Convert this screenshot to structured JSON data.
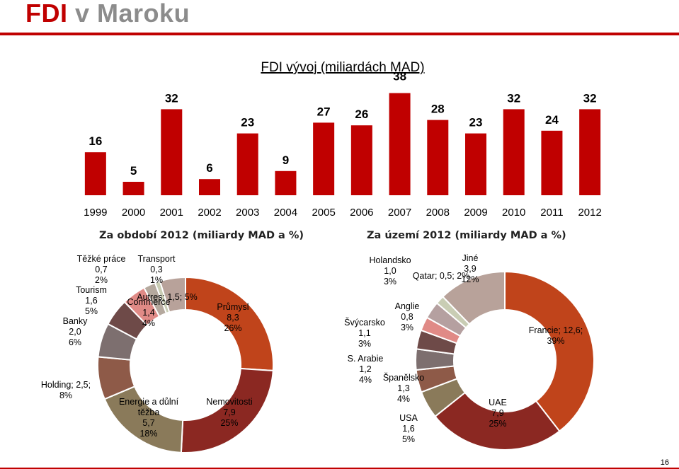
{
  "slide": {
    "title_strong": "FDI",
    "title_rest": "v Maroku",
    "page_number": "16",
    "colors": {
      "accent": "#c00000",
      "title_gray": "#8c8c8c"
    }
  },
  "chart_data": [
    {
      "type": "bar",
      "title": "FDI vývoj (miliardách MAD)",
      "categories": [
        "1999",
        "2000",
        "2001",
        "2002",
        "2003",
        "2004",
        "2005",
        "2006",
        "2007",
        "2008",
        "2009",
        "2010",
        "2011",
        "2012"
      ],
      "values": [
        16,
        5,
        32,
        6,
        23,
        9,
        27,
        26,
        38,
        28,
        23,
        32,
        24,
        32
      ],
      "color": "#c00000"
    },
    {
      "type": "pie",
      "title": "Za období 2012 (miliardy MAD a %)",
      "slices": [
        {
          "label_lines": [
            "Průmysl",
            "8,3",
            "26%"
          ],
          "value": 8.3,
          "color": "#c0441b"
        },
        {
          "label_lines": [
            "Nemovitosti",
            "7,9",
            "25%"
          ],
          "value": 7.9,
          "color": "#8b2822"
        },
        {
          "label_lines": [
            "Energie a důlní",
            "těžba",
            "5,7",
            "18%"
          ],
          "value": 5.7,
          "color": "#8a7a5a"
        },
        {
          "label_lines": [
            "Holding; 2,5;",
            "8%"
          ],
          "value": 2.5,
          "color": "#8e5a48"
        },
        {
          "label_lines": [
            "Banky",
            "2,0",
            "6%"
          ],
          "value": 2.0,
          "color": "#7d6f6f"
        },
        {
          "label_lines": [
            "Tourism",
            "1,6",
            "5%"
          ],
          "value": 1.6,
          "color": "#6e4a48"
        },
        {
          "label_lines": [
            "Commerce",
            "1,4",
            "4%"
          ],
          "value": 1.4,
          "color": "#e08a86"
        },
        {
          "label_lines": [
            "Těžké práce",
            "0,7",
            "2%"
          ],
          "value": 0.7,
          "color": "#b5a99e"
        },
        {
          "label_lines": [
            "Transport",
            "0,3",
            "1%"
          ],
          "value": 0.3,
          "color": "#c9cdb4"
        },
        {
          "label_lines": [
            "Autres; 1,5; 5%"
          ],
          "value": 1.5,
          "color": "#b8a29a"
        }
      ]
    },
    {
      "type": "pie",
      "title": "Za území 2012 (miliardy MAD a %)",
      "slices": [
        {
          "label_lines": [
            "Francie; 12,6;",
            "39%"
          ],
          "value": 12.6,
          "color": "#c0441b"
        },
        {
          "label_lines": [
            "UAE",
            "7,9",
            "25%"
          ],
          "value": 7.9,
          "color": "#8b2822"
        },
        {
          "label_lines": [
            "USA",
            "1,6",
            "5%"
          ],
          "value": 1.6,
          "color": "#8a7a5a"
        },
        {
          "label_lines": [
            "Španělsko",
            "1,3",
            "4%"
          ],
          "value": 1.3,
          "color": "#8e5a48"
        },
        {
          "label_lines": [
            "S. Arabie",
            "1,2",
            "4%"
          ],
          "value": 1.2,
          "color": "#7d6f6f"
        },
        {
          "label_lines": [
            "Švýcarsko",
            "1,1",
            "3%"
          ],
          "value": 1.1,
          "color": "#6e4a48"
        },
        {
          "label_lines": [
            "Anglie",
            "0,8",
            "3%"
          ],
          "value": 0.8,
          "color": "#e08a86"
        },
        {
          "label_lines": [
            "Holandsko",
            "1,0",
            "3%"
          ],
          "value": 1.0,
          "color": "#b5a0a0"
        },
        {
          "label_lines": [
            "Qatar; 0,5; 2%"
          ],
          "value": 0.5,
          "color": "#c9cdb4"
        },
        {
          "label_lines": [
            "Jiné",
            "3,9",
            "12%"
          ],
          "value": 3.9,
          "color": "#b8a29a"
        }
      ]
    }
  ]
}
